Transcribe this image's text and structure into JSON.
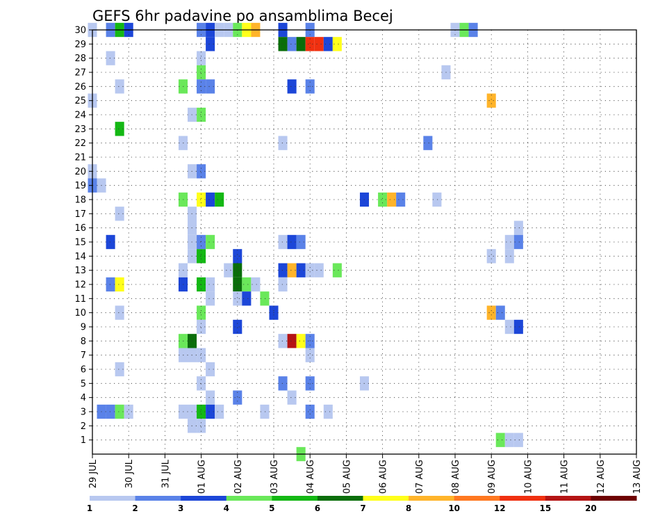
{
  "chart_data": {
    "type": "heatmap",
    "title": "GEFS 6hr padavine po ansamblima Becej",
    "ylim": [
      0,
      30
    ],
    "y_ticks": [
      1,
      2,
      3,
      4,
      5,
      6,
      7,
      8,
      9,
      10,
      11,
      12,
      13,
      14,
      15,
      16,
      17,
      18,
      19,
      20,
      21,
      22,
      23,
      24,
      25,
      26,
      27,
      28,
      29,
      30
    ],
    "x_tick_labels": [
      "29 JUL",
      "30 JUL",
      "31 JUL",
      "01 AUG",
      "02 AUG",
      "03 AUG",
      "04 AUG",
      "05 AUG",
      "06 AUG",
      "07 AUG",
      "08 AUG",
      "09 AUG",
      "10 AUG",
      "11 AUG",
      "12 AUG",
      "13 AUG"
    ],
    "grid": true,
    "x_unit": "6h step index from 29 JUL 00 UTC",
    "colorbar": {
      "labels": [
        "1",
        "2",
        "3",
        "4",
        "5",
        "6",
        "7",
        "8",
        "10",
        "12",
        "15",
        "20"
      ],
      "colors": [
        "#b8c8f0",
        "#5a82e8",
        "#1c46d8",
        "#6ae85a",
        "#14b814",
        "#0a6e0a",
        "#ffff1a",
        "#ffb42a",
        "#ff7820",
        "#f03010",
        "#b41414",
        "#6e0000"
      ]
    },
    "cells": [
      [
        30,
        0,
        1
      ],
      [
        30,
        2,
        2
      ],
      [
        30,
        3,
        5
      ],
      [
        30,
        4,
        3
      ],
      [
        30,
        12,
        2
      ],
      [
        30,
        13,
        3
      ],
      [
        30,
        14,
        1
      ],
      [
        30,
        15,
        1
      ],
      [
        30,
        16,
        4
      ],
      [
        30,
        17,
        7
      ],
      [
        30,
        18,
        8
      ],
      [
        30,
        21,
        3
      ],
      [
        30,
        24,
        2
      ],
      [
        30,
        40,
        1
      ],
      [
        30,
        41,
        4
      ],
      [
        30,
        42,
        2
      ],
      [
        29,
        13,
        3
      ],
      [
        29,
        21,
        6
      ],
      [
        29,
        22,
        2
      ],
      [
        29,
        23,
        6
      ],
      [
        29,
        24,
        10
      ],
      [
        29,
        25,
        10
      ],
      [
        29,
        26,
        3
      ],
      [
        29,
        27,
        7
      ],
      [
        28,
        2,
        1
      ],
      [
        28,
        12,
        1
      ],
      [
        27,
        12,
        4
      ],
      [
        27,
        39,
        1
      ],
      [
        26,
        3,
        1
      ],
      [
        26,
        10,
        4
      ],
      [
        26,
        12,
        2
      ],
      [
        26,
        13,
        2
      ],
      [
        26,
        22,
        3
      ],
      [
        26,
        24,
        2
      ],
      [
        25,
        0,
        1
      ],
      [
        25,
        44,
        8
      ],
      [
        24,
        12,
        4
      ],
      [
        24,
        11,
        1
      ],
      [
        23,
        3,
        5
      ],
      [
        22,
        10,
        1
      ],
      [
        22,
        21,
        1
      ],
      [
        22,
        37,
        2
      ],
      [
        20,
        0,
        1
      ],
      [
        20,
        11,
        1
      ],
      [
        20,
        12,
        2
      ],
      [
        19,
        0,
        2
      ],
      [
        19,
        1,
        1
      ],
      [
        18,
        10,
        4
      ],
      [
        18,
        12,
        7
      ],
      [
        18,
        13,
        3
      ],
      [
        18,
        14,
        5
      ],
      [
        18,
        30,
        3
      ],
      [
        18,
        32,
        4
      ],
      [
        18,
        33,
        8
      ],
      [
        18,
        34,
        2
      ],
      [
        18,
        38,
        1
      ],
      [
        17,
        3,
        1
      ],
      [
        17,
        11,
        1
      ],
      [
        16,
        11,
        1
      ],
      [
        16,
        47,
        1
      ],
      [
        15,
        2,
        3
      ],
      [
        15,
        11,
        1
      ],
      [
        15,
        12,
        2
      ],
      [
        15,
        13,
        4
      ],
      [
        15,
        21,
        1
      ],
      [
        15,
        22,
        3
      ],
      [
        15,
        23,
        2
      ],
      [
        15,
        46,
        1
      ],
      [
        15,
        47,
        2
      ],
      [
        14,
        11,
        1
      ],
      [
        14,
        12,
        5
      ],
      [
        14,
        16,
        3
      ],
      [
        14,
        44,
        1
      ],
      [
        14,
        46,
        1
      ],
      [
        13,
        10,
        1
      ],
      [
        13,
        15,
        1
      ],
      [
        13,
        16,
        6
      ],
      [
        13,
        21,
        3
      ],
      [
        13,
        22,
        8
      ],
      [
        13,
        23,
        3
      ],
      [
        13,
        24,
        1
      ],
      [
        13,
        25,
        1
      ],
      [
        13,
        27,
        4
      ],
      [
        12,
        2,
        2
      ],
      [
        12,
        3,
        7
      ],
      [
        12,
        10,
        3
      ],
      [
        12,
        12,
        5
      ],
      [
        12,
        13,
        1
      ],
      [
        12,
        16,
        6
      ],
      [
        12,
        17,
        4
      ],
      [
        12,
        18,
        1
      ],
      [
        12,
        21,
        1
      ],
      [
        11,
        13,
        1
      ],
      [
        11,
        16,
        1
      ],
      [
        11,
        17,
        3
      ],
      [
        11,
        19,
        4
      ],
      [
        10,
        3,
        1
      ],
      [
        10,
        12,
        4
      ],
      [
        10,
        20,
        3
      ],
      [
        10,
        44,
        8
      ],
      [
        10,
        45,
        2
      ],
      [
        9,
        12,
        1
      ],
      [
        9,
        16,
        3
      ],
      [
        9,
        46,
        1
      ],
      [
        9,
        47,
        3
      ],
      [
        8,
        10,
        4
      ],
      [
        8,
        11,
        6
      ],
      [
        8,
        21,
        1
      ],
      [
        8,
        22,
        11
      ],
      [
        8,
        23,
        7
      ],
      [
        8,
        24,
        2
      ],
      [
        7,
        10,
        1
      ],
      [
        7,
        11,
        1
      ],
      [
        7,
        12,
        1
      ],
      [
        7,
        24,
        1
      ],
      [
        6,
        3,
        1
      ],
      [
        6,
        13,
        1
      ],
      [
        5,
        12,
        1
      ],
      [
        5,
        21,
        2
      ],
      [
        5,
        24,
        2
      ],
      [
        5,
        30,
        1
      ],
      [
        4,
        13,
        1
      ],
      [
        4,
        16,
        2
      ],
      [
        4,
        22,
        1
      ],
      [
        3,
        1,
        2
      ],
      [
        3,
        2,
        2
      ],
      [
        3,
        3,
        4
      ],
      [
        3,
        4,
        1
      ],
      [
        3,
        10,
        1
      ],
      [
        3,
        11,
        1
      ],
      [
        3,
        12,
        5
      ],
      [
        3,
        13,
        3
      ],
      [
        3,
        14,
        1
      ],
      [
        3,
        19,
        1
      ],
      [
        3,
        24,
        2
      ],
      [
        3,
        26,
        1
      ],
      [
        2,
        11,
        1
      ],
      [
        2,
        12,
        1
      ],
      [
        1,
        45,
        4
      ],
      [
        1,
        46,
        1
      ],
      [
        1,
        47,
        1
      ],
      [
        0,
        23,
        4
      ]
    ]
  }
}
